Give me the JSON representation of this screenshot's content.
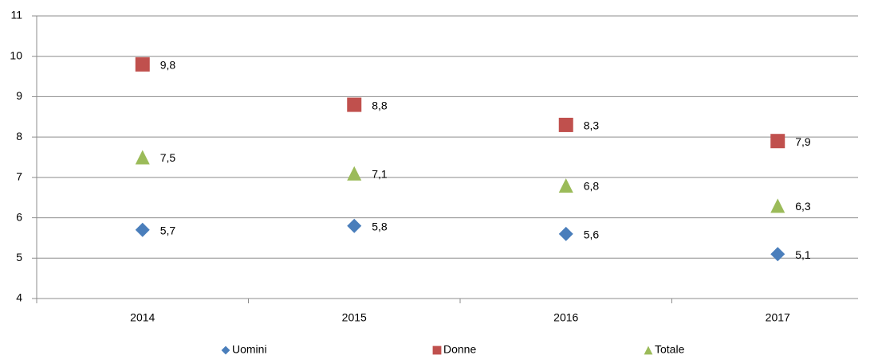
{
  "chart_data": {
    "type": "scatter",
    "categories": [
      "2014",
      "2015",
      "2016",
      "2017"
    ],
    "series": [
      {
        "name": "Uomini",
        "color": "#4a7ebb",
        "marker": "diamond",
        "values": [
          5.7,
          5.8,
          5.6,
          5.1
        ],
        "value_labels": [
          "5,7",
          "5,8",
          "5,6",
          "5,1"
        ]
      },
      {
        "name": "Donne",
        "color": "#c0504d",
        "marker": "square",
        "values": [
          9.8,
          8.8,
          8.3,
          7.9
        ],
        "value_labels": [
          "9,8",
          "8,8",
          "8,3",
          "7,9"
        ]
      },
      {
        "name": "Totale",
        "color": "#9bbb59",
        "marker": "triangle",
        "values": [
          7.5,
          7.1,
          6.8,
          6.3
        ],
        "value_labels": [
          "7,5",
          "7,1",
          "6,8",
          "6,3"
        ]
      }
    ],
    "ylim": [
      4,
      11
    ],
    "yticks": [
      4,
      5,
      6,
      7,
      8,
      9,
      10,
      11
    ],
    "grid": true,
    "legend": "bottom"
  }
}
